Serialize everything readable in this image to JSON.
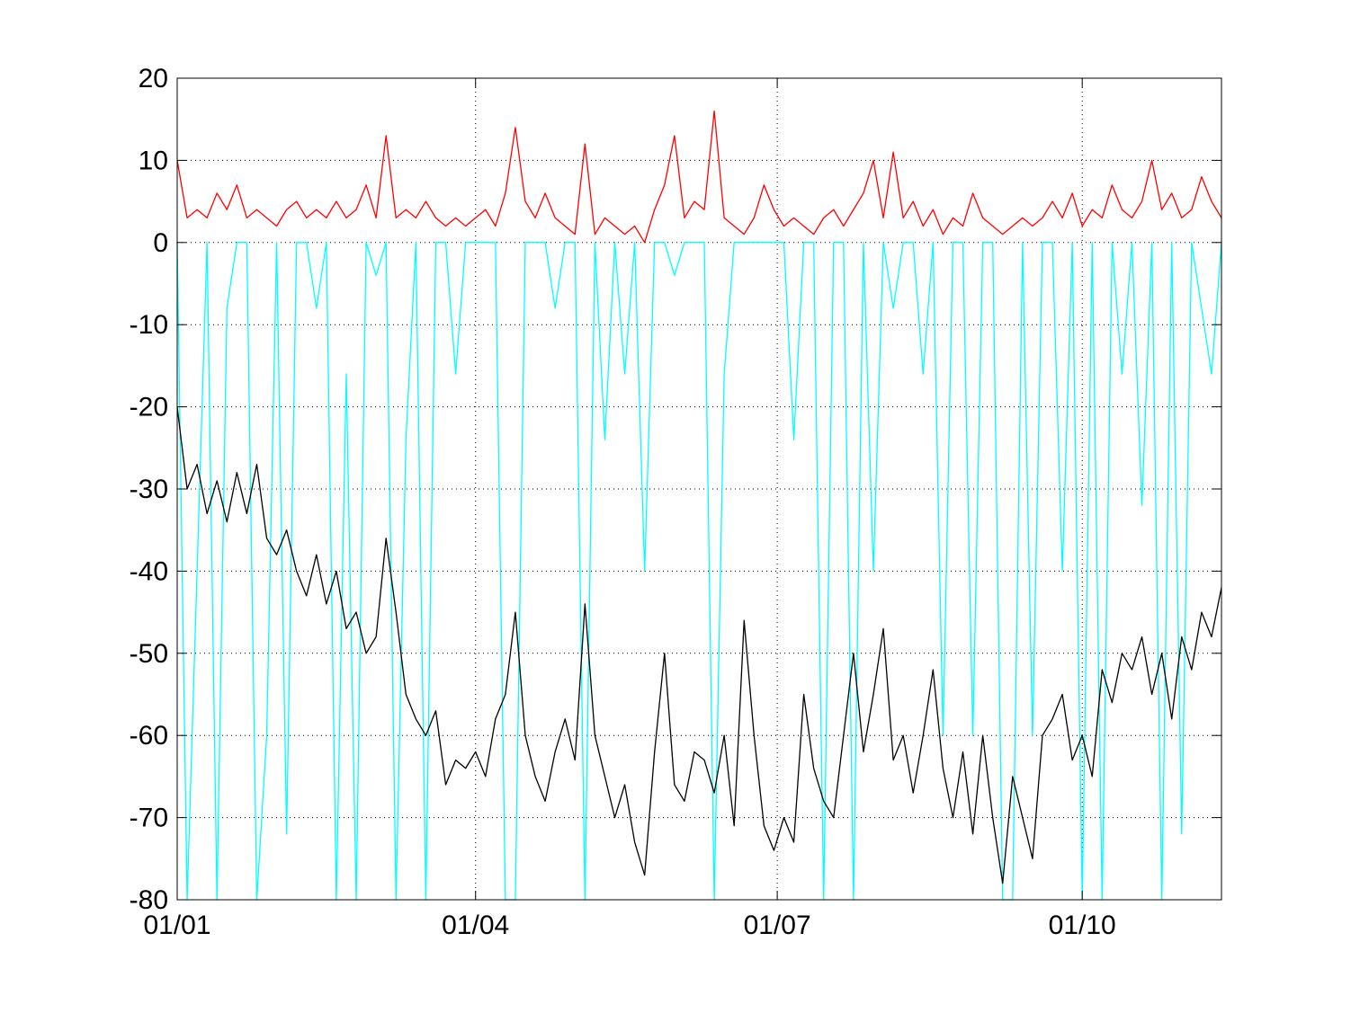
{
  "chart_data": {
    "type": "line",
    "x": [
      0,
      3,
      6,
      9,
      12,
      15,
      18,
      21,
      24,
      27,
      30,
      33,
      36,
      39,
      42,
      45,
      48,
      51,
      54,
      57,
      60,
      63,
      66,
      69,
      72,
      75,
      78,
      81,
      84,
      87,
      90,
      93,
      96,
      99,
      102,
      105,
      108,
      111,
      114,
      117,
      120,
      123,
      126,
      129,
      132,
      135,
      138,
      141,
      144,
      147,
      150,
      153,
      156,
      159,
      162,
      165,
      168,
      171,
      174,
      177,
      180,
      183,
      186,
      189,
      192,
      195,
      198,
      201,
      204,
      207,
      210,
      213,
      216,
      219,
      222,
      225,
      228,
      231,
      234,
      237,
      240,
      243,
      246,
      249,
      252,
      255,
      258,
      261,
      264,
      267,
      270,
      273,
      276,
      279,
      282,
      285,
      288,
      291,
      294,
      297,
      300,
      303,
      306,
      309,
      312,
      315
    ],
    "series": [
      {
        "color": "#ff0000",
        "values": [
          10,
          3,
          4,
          3,
          6,
          4,
          7,
          3,
          4,
          3,
          2,
          4,
          5,
          3,
          4,
          3,
          5,
          3,
          4,
          7,
          3,
          13,
          3,
          4,
          3,
          5,
          3,
          2,
          3,
          2,
          3,
          4,
          2,
          6,
          14,
          5,
          3,
          6,
          3,
          2,
          1,
          12,
          1,
          3,
          2,
          1,
          2,
          0,
          4,
          7,
          13,
          3,
          5,
          4,
          16,
          3,
          2,
          1,
          3,
          7,
          4,
          2,
          3,
          2,
          1,
          3,
          4,
          2,
          4,
          6,
          10,
          3,
          11,
          3,
          5,
          2,
          4,
          1,
          3,
          2,
          6,
          3,
          2,
          1,
          2,
          3,
          2,
          3,
          5,
          3,
          6,
          2,
          4,
          3,
          7,
          4,
          3,
          5,
          10,
          4,
          6,
          3,
          4,
          8,
          5,
          3
        ]
      },
      {
        "color": "#00ffff",
        "values": [
          0,
          -80,
          -40,
          0,
          -80,
          -8,
          0,
          0,
          -80,
          -60,
          0,
          -72,
          0,
          0,
          -8,
          0,
          -80,
          -16,
          -80,
          0,
          -4,
          0,
          -80,
          -24,
          0,
          -80,
          0,
          0,
          -16,
          0,
          0,
          0,
          0,
          -80,
          -80,
          0,
          0,
          0,
          -8,
          0,
          0,
          -80,
          0,
          -24,
          0,
          -16,
          0,
          -40,
          0,
          0,
          -4,
          0,
          0,
          0,
          -80,
          -16,
          0,
          0,
          0,
          0,
          0,
          0,
          -24,
          0,
          0,
          -80,
          0,
          0,
          -80,
          0,
          -40,
          0,
          -8,
          0,
          0,
          -16,
          0,
          -60,
          0,
          0,
          -60,
          0,
          0,
          -80,
          -80,
          0,
          -60,
          0,
          0,
          -40,
          0,
          -80,
          0,
          -80,
          0,
          -16,
          0,
          -32,
          0,
          -80,
          0,
          -72,
          0,
          -8,
          -16,
          0
        ]
      },
      {
        "color": "#000000",
        "values": [
          -20,
          -30,
          -27,
          -33,
          -29,
          -34,
          -28,
          -33,
          -27,
          -36,
          -38,
          -35,
          -40,
          -43,
          -38,
          -44,
          -40,
          -47,
          -45,
          -50,
          -48,
          -36,
          -45,
          -55,
          -58,
          -60,
          -57,
          -66,
          -63,
          -64,
          -62,
          -65,
          -58,
          -55,
          -45,
          -60,
          -65,
          -68,
          -62,
          -58,
          -63,
          -44,
          -60,
          -65,
          -70,
          -66,
          -73,
          -77,
          -62,
          -50,
          -66,
          -68,
          -62,
          -63,
          -67,
          -60,
          -71,
          -46,
          -60,
          -71,
          -74,
          -70,
          -73,
          -55,
          -64,
          -68,
          -70,
          -60,
          -50,
          -62,
          -55,
          -47,
          -63,
          -60,
          -67,
          -60,
          -52,
          -64,
          -70,
          -62,
          -72,
          -60,
          -70,
          -78,
          -65,
          -70,
          -75,
          -60,
          -58,
          -55,
          -63,
          -60,
          -65,
          -52,
          -56,
          -50,
          -52,
          -48,
          -55,
          -50,
          -58,
          -48,
          -52,
          -45,
          -48,
          -42
        ]
      }
    ],
    "xlim": [
      0,
      315
    ],
    "xticks": [
      {
        "value": 0,
        "label": "01/01"
      },
      {
        "value": 90,
        "label": "01/04"
      },
      {
        "value": 181,
        "label": "01/07"
      },
      {
        "value": 273,
        "label": "01/10"
      }
    ],
    "ylim": [
      -80,
      20
    ],
    "yticks": [
      -80,
      -70,
      -60,
      -50,
      -40,
      -30,
      -20,
      -10,
      0,
      10,
      20
    ],
    "grid": true
  }
}
